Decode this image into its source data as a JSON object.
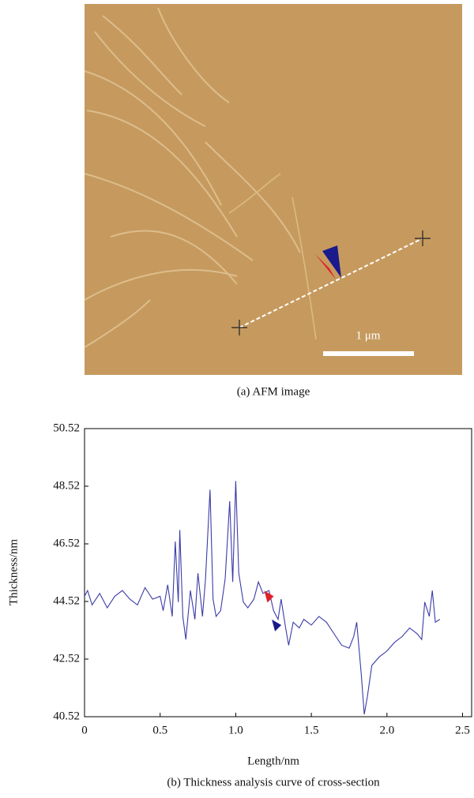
{
  "image": {
    "scale_bar_label": "1 μm",
    "caption": "(a) AFM image"
  },
  "chart_data": {
    "type": "line",
    "caption": "(b) Thickness analysis curve of cross-section",
    "xlabel": "Length/nm",
    "ylabel": "Thickness/nm",
    "x": [
      0,
      0.02,
      0.05,
      0.1,
      0.15,
      0.2,
      0.25,
      0.3,
      0.35,
      0.4,
      0.45,
      0.5,
      0.52,
      0.55,
      0.58,
      0.6,
      0.62,
      0.63,
      0.65,
      0.67,
      0.7,
      0.73,
      0.75,
      0.78,
      0.8,
      0.83,
      0.85,
      0.87,
      0.9,
      0.93,
      0.96,
      0.98,
      1.0,
      1.02,
      1.05,
      1.08,
      1.12,
      1.15,
      1.18,
      1.22,
      1.25,
      1.28,
      1.3,
      1.33,
      1.35,
      1.38,
      1.42,
      1.45,
      1.5,
      1.55,
      1.6,
      1.65,
      1.7,
      1.75,
      1.78,
      1.8,
      1.83,
      1.85,
      1.87,
      1.9,
      1.95,
      2.0,
      2.05,
      2.1,
      2.15,
      2.2,
      2.23,
      2.25,
      2.28,
      2.3,
      2.32,
      2.35
    ],
    "series": [
      {
        "color": "#3b3ba8",
        "values": [
          44.7,
          44.9,
          44.4,
          44.8,
          44.3,
          44.7,
          44.9,
          44.6,
          44.4,
          45.0,
          44.6,
          44.7,
          44.2,
          45.1,
          44.0,
          46.6,
          44.5,
          47.0,
          44.0,
          43.2,
          44.9,
          43.9,
          45.5,
          44.0,
          45.3,
          48.4,
          44.6,
          44.0,
          44.2,
          45.3,
          48.0,
          45.2,
          48.7,
          45.5,
          44.5,
          44.3,
          44.6,
          45.2,
          44.8,
          44.9,
          44.2,
          43.9,
          44.6,
          43.6,
          43.0,
          43.8,
          43.6,
          43.9,
          43.7,
          44.0,
          43.8,
          43.4,
          43.0,
          42.9,
          43.3,
          43.8,
          42.0,
          40.6,
          41.2,
          42.3,
          42.6,
          42.8,
          43.1,
          43.3,
          43.6,
          43.4,
          43.2,
          44.5,
          44.0,
          44.9,
          43.8,
          43.9
        ]
      }
    ],
    "markers": [
      {
        "x": 1.22,
        "y": 44.7,
        "color": "#e0202a"
      },
      {
        "x": 1.27,
        "y": 43.7,
        "color": "#1a1a8c"
      }
    ],
    "xlim": [
      0,
      2.56
    ],
    "xticks": [
      0,
      0.5,
      {
        "value": 1,
        "label": "1.0"
      },
      1.5,
      {
        "value": 2,
        "label": "2.0"
      },
      2.5
    ],
    "ylim": [
      40.52,
      50.52
    ],
    "yticks": [
      40.52,
      42.52,
      44.52,
      46.52,
      48.52,
      50.52
    ]
  }
}
